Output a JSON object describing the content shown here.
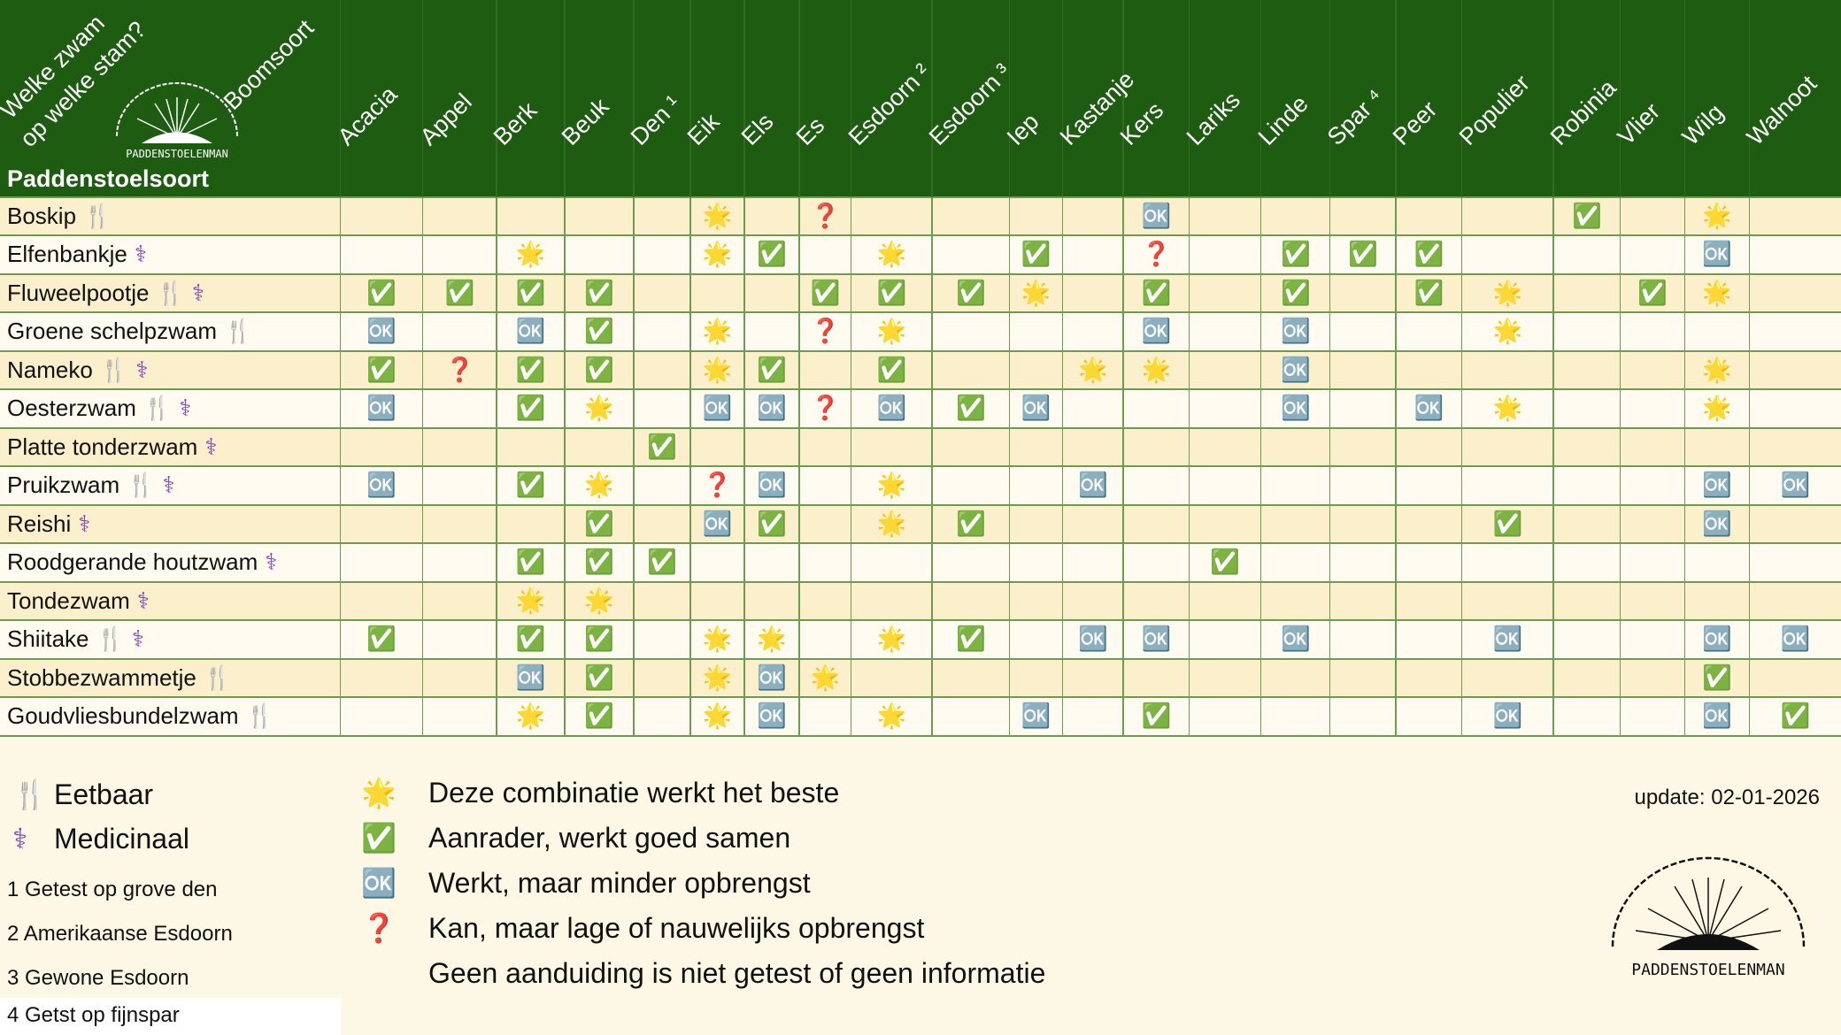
{
  "header": {
    "question": [
      "Welke zwam",
      "op welke stam?"
    ],
    "tree_axis": "Boomsoort",
    "mushroom_axis": "Paddenstoelsoort",
    "logo_text": "PADDENSTOELENMAN"
  },
  "trees": [
    "Acacia",
    "Appel",
    "Berk",
    "Beuk",
    "Den ¹",
    "Eik",
    "Els",
    "Es",
    "Esdoorn ²",
    "Esdoorn ³",
    "Iep",
    "Kastanje",
    "Kers",
    "Lariks",
    "Linde",
    "Spar ⁴",
    "Peer",
    "Populier",
    "Robinia",
    "Vlier",
    "Wilg",
    "Walnoot"
  ],
  "rows": [
    {
      "name": "Boskip",
      "tags": [
        "🍴"
      ],
      "cells": [
        null,
        null,
        null,
        null,
        null,
        "🌟",
        null,
        "❓",
        null,
        null,
        null,
        null,
        "🆗",
        null,
        null,
        null,
        null,
        null,
        "✅",
        null,
        "🌟",
        null
      ]
    },
    {
      "name": "Elfenbankje",
      "tags": [
        "⚕"
      ],
      "cells": [
        null,
        null,
        "🌟",
        null,
        null,
        "🌟",
        "✅",
        null,
        "🌟",
        null,
        "✅",
        null,
        "❓",
        null,
        "✅",
        "✅",
        "✅",
        null,
        null,
        null,
        "🆗",
        null
      ]
    },
    {
      "name": "Fluweelpootje",
      "tags": [
        "🍴",
        "⚕"
      ],
      "cells": [
        "✅",
        "✅",
        "✅",
        "✅",
        null,
        null,
        null,
        "✅",
        "✅",
        "✅",
        "🌟",
        null,
        "✅",
        null,
        "✅",
        null,
        "✅",
        "🌟",
        null,
        "✅",
        "🌟",
        null
      ]
    },
    {
      "name": "Groene schelpzwam",
      "tags": [
        "🍴"
      ],
      "cells": [
        "🆗",
        null,
        "🆗",
        "✅",
        null,
        "🌟",
        null,
        "❓",
        "🌟",
        null,
        null,
        null,
        "🆗",
        null,
        "🆗",
        null,
        null,
        "🌟",
        null,
        null,
        null,
        null
      ]
    },
    {
      "name": "Nameko",
      "tags": [
        "🍴",
        "⚕"
      ],
      "cells": [
        "✅",
        "❓",
        "✅",
        "✅",
        null,
        "🌟",
        "✅",
        null,
        "✅",
        null,
        null,
        "🌟",
        "🌟",
        null,
        "🆗",
        null,
        null,
        null,
        null,
        null,
        "🌟",
        null
      ]
    },
    {
      "name": "Oesterzwam",
      "tags": [
        "🍴",
        "⚕"
      ],
      "cells": [
        "🆗",
        null,
        "✅",
        "🌟",
        null,
        "🆗",
        "🆗",
        "❓",
        "🆗",
        "✅",
        "🆗",
        null,
        null,
        null,
        "🆗",
        null,
        "🆗",
        "🌟",
        null,
        null,
        "🌟",
        null
      ]
    },
    {
      "name": "Platte tonderzwam",
      "tags": [
        "⚕"
      ],
      "cells": [
        null,
        null,
        null,
        null,
        "✅",
        null,
        null,
        null,
        null,
        null,
        null,
        null,
        null,
        null,
        null,
        null,
        null,
        null,
        null,
        null,
        null,
        null
      ]
    },
    {
      "name": "Pruikzwam",
      "tags": [
        "🍴",
        "⚕"
      ],
      "cells": [
        "🆗",
        null,
        "✅",
        "🌟",
        null,
        "❓",
        "🆗",
        null,
        "🌟",
        null,
        null,
        "🆗",
        null,
        null,
        null,
        null,
        null,
        null,
        null,
        null,
        "🆗",
        "🆗"
      ]
    },
    {
      "name": "Reishi",
      "tags": [
        "⚕"
      ],
      "cells": [
        null,
        null,
        null,
        "✅",
        null,
        "🆗",
        "✅",
        null,
        "🌟",
        "✅",
        null,
        null,
        null,
        null,
        null,
        null,
        null,
        "✅",
        null,
        null,
        "🆗",
        null
      ]
    },
    {
      "name": "Roodgerande houtzwam",
      "tags": [
        "⚕"
      ],
      "cells": [
        null,
        null,
        "✅",
        "✅",
        "✅",
        null,
        null,
        null,
        null,
        null,
        null,
        null,
        null,
        "✅",
        null,
        null,
        null,
        null,
        null,
        null,
        null,
        null
      ]
    },
    {
      "name": "Tondezwam",
      "tags": [
        "⚕"
      ],
      "cells": [
        null,
        null,
        "🌟",
        "🌟",
        null,
        null,
        null,
        null,
        null,
        null,
        null,
        null,
        null,
        null,
        null,
        null,
        null,
        null,
        null,
        null,
        null,
        null
      ]
    },
    {
      "name": "Shiitake",
      "tags": [
        "🍴",
        "⚕"
      ],
      "cells": [
        "✅",
        null,
        "✅",
        "✅",
        null,
        "🌟",
        "🌟",
        null,
        "🌟",
        "✅",
        null,
        "🆗",
        "🆗",
        null,
        "🆗",
        null,
        null,
        "🆗",
        null,
        null,
        "🆗",
        "🆗"
      ]
    },
    {
      "name": "Stobbezwammetje",
      "tags": [
        "🍴"
      ],
      "cells": [
        null,
        null,
        "🆗",
        "✅",
        null,
        "🌟",
        "🆗",
        "🌟",
        null,
        null,
        null,
        null,
        null,
        null,
        null,
        null,
        null,
        null,
        null,
        null,
        "✅",
        null
      ]
    },
    {
      "name": "Goudvliesbundelzwam",
      "tags": [
        "🍴"
      ],
      "cells": [
        null,
        null,
        "🌟",
        "✅",
        null,
        "🌟",
        "🆗",
        null,
        "🌟",
        null,
        "🆗",
        null,
        "✅",
        null,
        null,
        null,
        null,
        "🆗",
        null,
        null,
        "🆗",
        "✅"
      ]
    }
  ],
  "legend": {
    "tags": [
      {
        "icon": "🍴",
        "label": "Eetbaar"
      },
      {
        "icon": "⚕",
        "label": "Medicinaal"
      }
    ],
    "notes": [
      "1 Getest op grove den",
      "2 Amerikaanse Esdoorn",
      "3 Gewone Esdoorn",
      "4 Getst op fijnspar"
    ],
    "symbols": [
      {
        "icon": "🌟",
        "label": "Deze combinatie werkt het beste"
      },
      {
        "icon": "✅",
        "label": "Aanrader, werkt goed samen"
      },
      {
        "icon": "🆗",
        "label": "Werkt, maar minder opbrengst"
      },
      {
        "icon": "❓",
        "label": "Kan, maar lage of nauwelijks opbrengst"
      },
      {
        "label": "Geen aanduiding is niet getest of geen informatie"
      }
    ]
  },
  "update": "update: 02-01-2026",
  "logo_text": "PADDENSTOELENMAN"
}
